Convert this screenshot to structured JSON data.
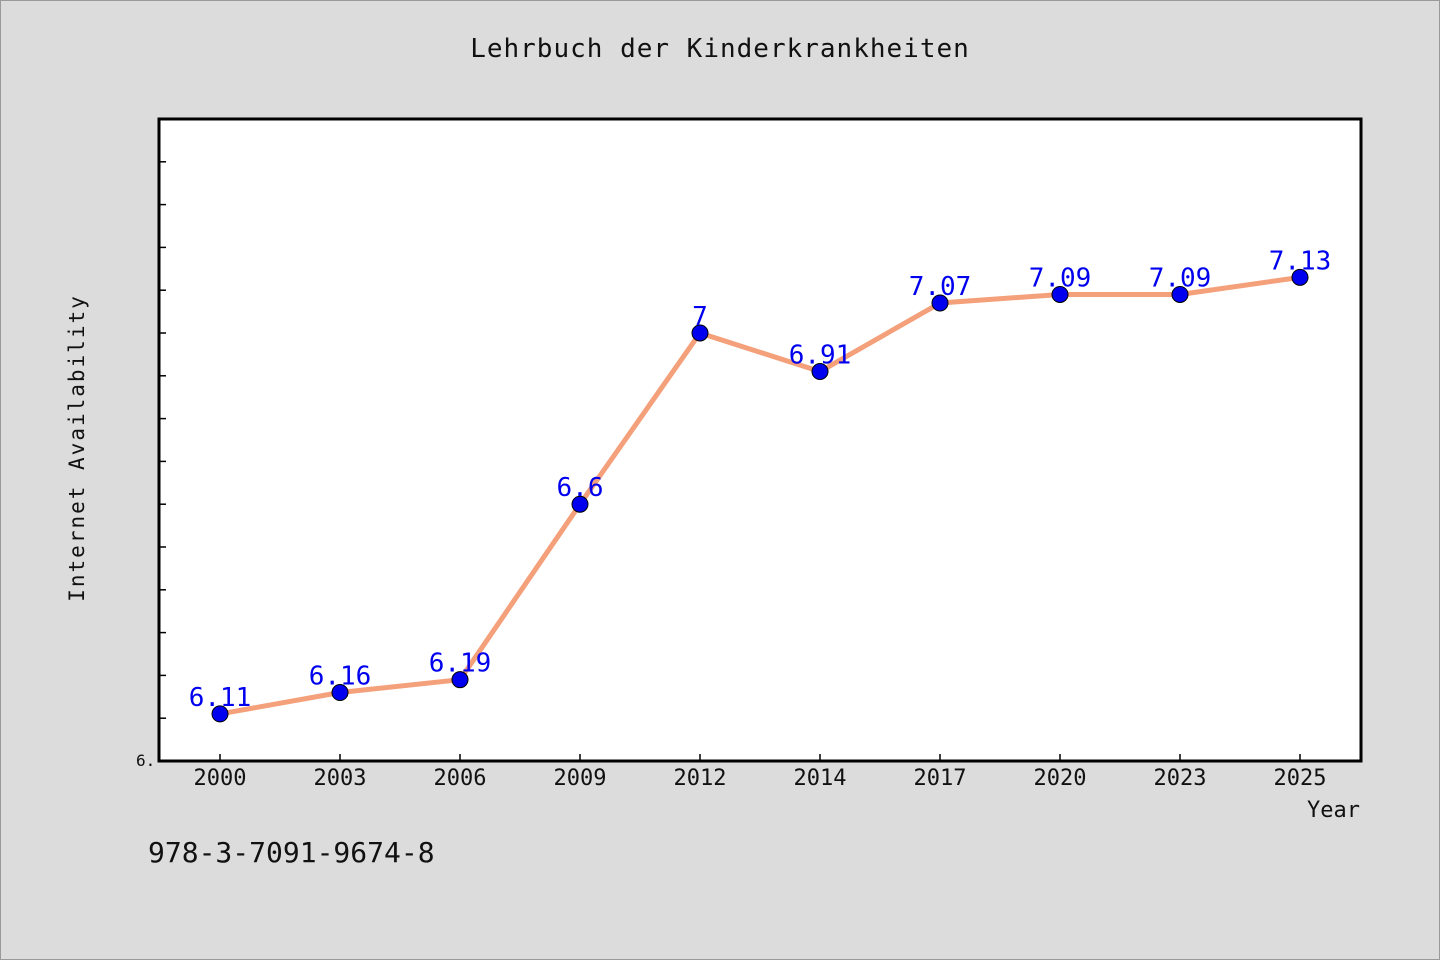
{
  "page": {
    "title": "Lehrbuch der Kinderkrankheiten",
    "isbn": "978-3-7091-9674-8"
  },
  "chart_data": {
    "type": "line",
    "title": "Lehrbuch der Kinderkrankheiten",
    "xlabel": "Year",
    "ylabel": "Internet Availability",
    "categories": [
      "2000",
      "2003",
      "2006",
      "2009",
      "2012",
      "2014",
      "2017",
      "2020",
      "2023",
      "2025"
    ],
    "series": [
      {
        "values": [
          6.11,
          6.16,
          6.19,
          6.6,
          7.0,
          6.91,
          7.07,
          7.09,
          7.09,
          7.13
        ],
        "data_labels": [
          "6.11",
          "6.16",
          "6.19",
          "6.6",
          "7",
          "6.91",
          "7.07",
          "7.09",
          "7.09",
          "7.13"
        ],
        "line_color": "#f4a07a",
        "marker_color": "#0000ee"
      }
    ],
    "ylim": [
      6.0,
      7.5
    ],
    "y_tick_label": "6.",
    "grid": false,
    "legend": "none"
  }
}
